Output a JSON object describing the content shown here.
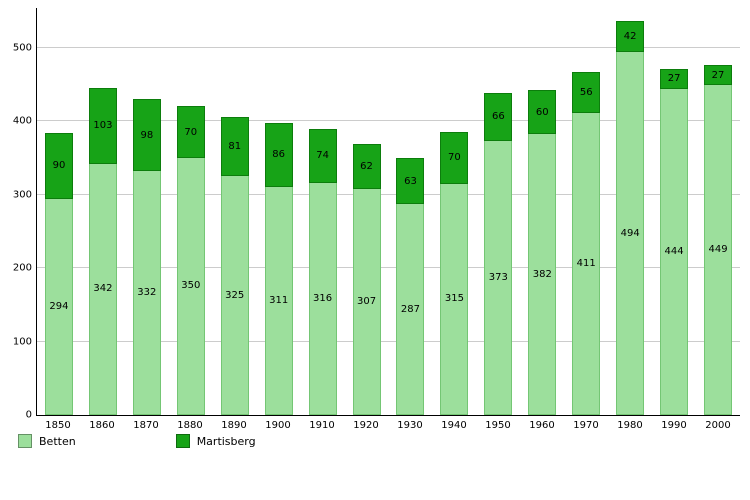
{
  "chart_data": {
    "type": "bar",
    "stacked": true,
    "title": "",
    "xlabel": "",
    "ylabel": "",
    "categories": [
      "1850",
      "1860",
      "1870",
      "1880",
      "1890",
      "1900",
      "1910",
      "1920",
      "1930",
      "1940",
      "1950",
      "1960",
      "1970",
      "1980",
      "1990",
      "2000"
    ],
    "series": [
      {
        "name": "Betten",
        "color": "#9cdf9c",
        "values": [
          294,
          342,
          332,
          350,
          325,
          311,
          316,
          307,
          287,
          315,
          373,
          382,
          411,
          494,
          444,
          449
        ]
      },
      {
        "name": "Martisberg",
        "color": "#17a317",
        "values": [
          90,
          103,
          98,
          70,
          81,
          86,
          74,
          62,
          63,
          70,
          66,
          60,
          56,
          42,
          27,
          27
        ]
      }
    ],
    "ylim": [
      0,
      554
    ],
    "yticks": [
      0,
      100,
      200,
      300,
      400,
      500
    ],
    "grid": true,
    "legend_position": "bottom"
  },
  "legend": {
    "betten_label": "Betten",
    "martisberg_label": "Martisberg"
  }
}
